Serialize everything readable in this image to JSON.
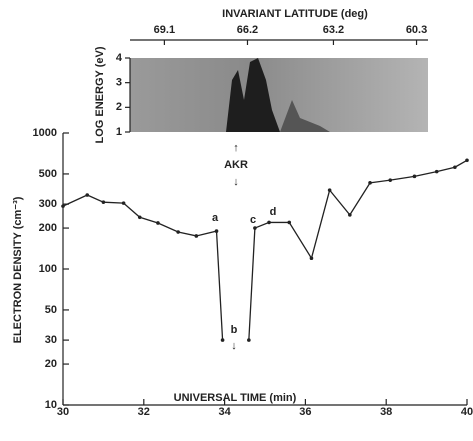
{
  "chart_data": {
    "type": "line",
    "xlabel": "UNIVERSAL TIME (min)",
    "ylabel": "ELECTRON DENSITY (cm⁻³)",
    "x": [
      30,
      30.6,
      31.0,
      31.5,
      31.9,
      32.35,
      32.85,
      33.3,
      33.8,
      33.95,
      34.3,
      34.6,
      34.75,
      35.1,
      35.6,
      36.15,
      36.6,
      37.1,
      37.6,
      38.1,
      38.7,
      39.25,
      39.7,
      40
    ],
    "values": [
      290,
      350,
      310,
      305,
      240,
      218,
      187,
      175,
      190,
      30,
      null,
      30,
      200,
      220,
      220,
      120,
      380,
      250,
      430,
      450,
      480,
      520,
      560,
      630
    ],
    "color": "#222222",
    "xlim": [
      30,
      40
    ],
    "xticks": [
      30,
      32,
      34,
      36,
      38,
      40
    ],
    "ylim": [
      10,
      1000
    ],
    "ylog": true,
    "yticks": [
      10,
      20,
      30,
      50,
      100,
      200,
      300,
      500,
      1000
    ],
    "annotations": [
      "a",
      "b",
      "c",
      "d",
      "AKR"
    ],
    "inset": {
      "ylabel": "LOG ENERGY (eV)",
      "ylim": [
        1,
        4
      ],
      "yticks": [
        1,
        2,
        3,
        4
      ],
      "xlabel": "INVARIANT LATITUDE (deg)",
      "xlim": [
        70.3,
        59.9
      ],
      "xticks": [
        69.1,
        66.2,
        63.2,
        60.3
      ]
    }
  }
}
